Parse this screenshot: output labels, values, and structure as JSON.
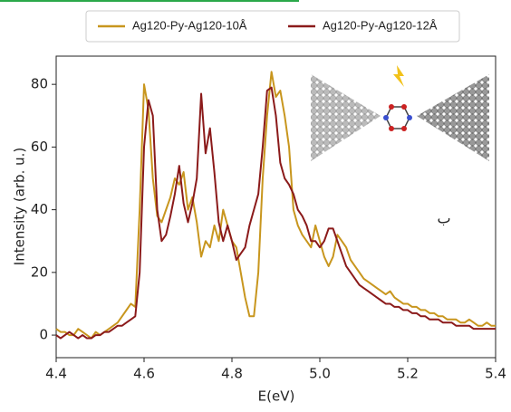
{
  "chart_data": {
    "type": "line",
    "xlabel": "E(eV)",
    "ylabel": "Intensity (arb. u.)",
    "annotation": "ب",
    "x": [
      4.4,
      4.41,
      4.42,
      4.43,
      4.44,
      4.45,
      4.46,
      4.47,
      4.48,
      4.49,
      4.5,
      4.51,
      4.52,
      4.53,
      4.54,
      4.55,
      4.56,
      4.57,
      4.58,
      4.59,
      4.6,
      4.61,
      4.62,
      4.63,
      4.64,
      4.65,
      4.66,
      4.67,
      4.68,
      4.69,
      4.7,
      4.71,
      4.72,
      4.73,
      4.74,
      4.75,
      4.76,
      4.77,
      4.78,
      4.79,
      4.8,
      4.81,
      4.82,
      4.83,
      4.84,
      4.85,
      4.86,
      4.87,
      4.88,
      4.89,
      4.9,
      4.91,
      4.92,
      4.93,
      4.94,
      4.95,
      4.96,
      4.97,
      4.98,
      4.99,
      5.0,
      5.01,
      5.02,
      5.03,
      5.04,
      5.05,
      5.06,
      5.07,
      5.08,
      5.09,
      5.1,
      5.11,
      5.12,
      5.13,
      5.14,
      5.15,
      5.16,
      5.17,
      5.18,
      5.19,
      5.2,
      5.21,
      5.22,
      5.23,
      5.24,
      5.25,
      5.26,
      5.27,
      5.28,
      5.29,
      5.3,
      5.31,
      5.32,
      5.33,
      5.34,
      5.35,
      5.36,
      5.37,
      5.38,
      5.39,
      5.4
    ],
    "series": [
      {
        "name": "Ag120-Py-Ag120-10Å",
        "color": "#c8961e",
        "values": [
          2,
          1,
          1,
          0,
          0,
          2,
          1,
          0,
          -1,
          1,
          0,
          1,
          2,
          3,
          4,
          6,
          8,
          10,
          9,
          40,
          80,
          72,
          50,
          38,
          36,
          40,
          44,
          50,
          48,
          52,
          40,
          44,
          36,
          25,
          30,
          28,
          35,
          30,
          40,
          35,
          30,
          28,
          20,
          12,
          6,
          6,
          20,
          50,
          70,
          84,
          76,
          78,
          70,
          60,
          40,
          35,
          32,
          30,
          28,
          35,
          30,
          25,
          22,
          25,
          32,
          30,
          28,
          24,
          22,
          20,
          18,
          17,
          16,
          15,
          14,
          13,
          14,
          12,
          11,
          10,
          10,
          9,
          9,
          8,
          8,
          7,
          7,
          6,
          6,
          5,
          5,
          5,
          4,
          4,
          5,
          4,
          3,
          3,
          4,
          3,
          3
        ]
      },
      {
        "name": "Ag120-Py-Ag120-12Å",
        "color": "#8b1a1a",
        "values": [
          0,
          -1,
          0,
          1,
          0,
          -1,
          0,
          -1,
          -1,
          0,
          0,
          1,
          1,
          2,
          3,
          3,
          4,
          5,
          6,
          20,
          60,
          75,
          70,
          40,
          30,
          32,
          38,
          45,
          54,
          42,
          36,
          42,
          50,
          77,
          58,
          66,
          52,
          36,
          30,
          35,
          30,
          24,
          26,
          28,
          35,
          40,
          45,
          60,
          78,
          79,
          70,
          55,
          50,
          48,
          45,
          40,
          38,
          35,
          30,
          30,
          28,
          30,
          34,
          34,
          30,
          26,
          22,
          20,
          18,
          16,
          15,
          14,
          13,
          12,
          11,
          10,
          10,
          9,
          9,
          8,
          8,
          7,
          7,
          6,
          6,
          5,
          5,
          5,
          4,
          4,
          4,
          3,
          3,
          3,
          3,
          2,
          2,
          2,
          2,
          2,
          2
        ]
      }
    ],
    "xlim": [
      4.4,
      5.4
    ],
    "xticks": [
      4.4,
      4.6,
      4.8,
      {
        "value": 5,
        "label": "5.0"
      },
      5.2,
      5.4
    ],
    "ylim": [
      -7.2,
      89
    ],
    "yticks": [
      0,
      20,
      40,
      60,
      80
    ]
  }
}
